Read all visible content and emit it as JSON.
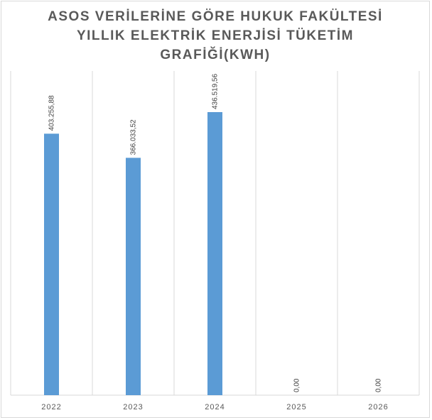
{
  "chart_data": {
    "type": "bar",
    "title_lines": [
      "ASOS VERİLERİNE GÖRE HUKUK FAKÜLTESİ",
      "YILLIK ELEKTRİK ENERJİSİ TÜKETİM",
      "GRAFİĞİ(KWH)"
    ],
    "categories": [
      "2022",
      "2023",
      "2024",
      "2025",
      "2026"
    ],
    "values": [
      403255.88,
      366033.52,
      436519.56,
      0,
      0
    ],
    "data_labels": [
      "403.255,88",
      "366.033,52",
      "436.519,56",
      "0,00",
      "0,00"
    ],
    "ylim": [
      0,
      500000
    ],
    "grid": "vertical",
    "legend": "none",
    "bar_color": "#5b9bd5"
  }
}
